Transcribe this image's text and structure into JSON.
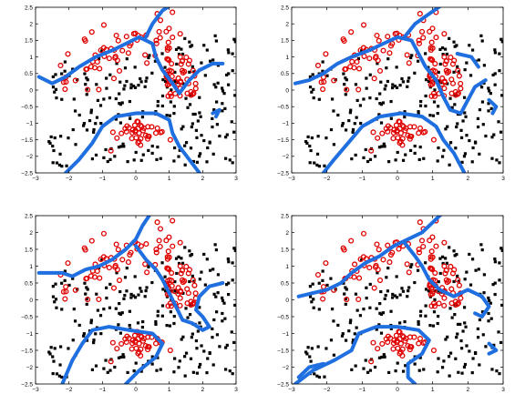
{
  "chart_data": [
    {
      "type": "scatter",
      "panel": "top-left",
      "xlim": [
        -3,
        3
      ],
      "ylim": [
        -2.5,
        2.5
      ],
      "xticks": [
        "−3",
        "−2",
        "−1",
        "0",
        "1",
        "2",
        "3"
      ],
      "yticks": [
        "2.5",
        "2",
        "1.5",
        "1",
        "0.5",
        "0",
        "−0.5",
        "−1",
        "−1.5",
        "−2",
        "−2.5"
      ],
      "grid": false,
      "classes": [
        {
          "marker": "dot",
          "color": "#000000",
          "seed": 11,
          "count": 230
        },
        {
          "marker": "circle",
          "color": "#e00000",
          "seed": 23,
          "count": 150
        }
      ],
      "boundaries": [
        [
          [
            -2.9,
            0.4
          ],
          [
            -2.5,
            0.2
          ],
          [
            -2.1,
            0.4
          ],
          [
            -1.7,
            0.7
          ],
          [
            -1.2,
            1.0
          ],
          [
            -0.7,
            1.2
          ],
          [
            -0.3,
            1.4
          ],
          [
            0.1,
            1.6
          ],
          [
            0.5,
            1.4
          ],
          [
            0.6,
            1.0
          ],
          [
            0.8,
            0.6
          ],
          [
            1.1,
            0.2
          ],
          [
            1.3,
            -0.1
          ],
          [
            1.6,
            0.3
          ],
          [
            1.9,
            0.6
          ],
          [
            2.3,
            0.8
          ],
          [
            2.6,
            0.8
          ]
        ],
        [
          [
            0.3,
            1.6
          ],
          [
            0.5,
            2.0
          ],
          [
            0.8,
            2.4
          ],
          [
            1.1,
            2.6
          ]
        ],
        [
          [
            -2.1,
            -2.5
          ],
          [
            -1.7,
            -2.1
          ],
          [
            -1.3,
            -1.6
          ],
          [
            -1.0,
            -1.1
          ],
          [
            -0.6,
            -0.8
          ],
          [
            0.0,
            -0.7
          ],
          [
            0.6,
            -0.7
          ],
          [
            1.0,
            -0.9
          ],
          [
            1.1,
            -1.3
          ],
          [
            1.3,
            -1.7
          ],
          [
            1.6,
            -2.1
          ],
          [
            1.9,
            -2.5
          ]
        ],
        [
          [
            2.3,
            -0.7
          ],
          [
            2.5,
            -0.6
          ],
          [
            2.4,
            -0.8
          ]
        ]
      ]
    },
    {
      "type": "scatter",
      "panel": "top-right",
      "xlim": [
        -3,
        3
      ],
      "ylim": [
        -2.5,
        2.5
      ],
      "xticks": [
        "−3",
        "−2",
        "−1",
        "0",
        "1",
        "2",
        "3"
      ],
      "yticks": [
        "2.5",
        "2",
        "1.5",
        "1",
        "0.5",
        "0",
        "−0.5",
        "−1",
        "−1.5",
        "−2",
        "−2.5"
      ],
      "grid": false,
      "classes": [
        {
          "marker": "dot",
          "color": "#000000",
          "seed": 11,
          "count": 230
        },
        {
          "marker": "circle",
          "color": "#e00000",
          "seed": 23,
          "count": 150
        }
      ],
      "boundaries": [
        [
          [
            -2.9,
            0.2
          ],
          [
            -2.5,
            0.3
          ],
          [
            -2.1,
            0.5
          ],
          [
            -1.7,
            0.8
          ],
          [
            -1.3,
            1.0
          ],
          [
            -0.8,
            1.2
          ],
          [
            -0.4,
            1.4
          ],
          [
            0.0,
            1.6
          ],
          [
            0.4,
            1.5
          ],
          [
            0.6,
            1.1
          ],
          [
            0.8,
            0.7
          ],
          [
            1.1,
            0.3
          ],
          [
            1.3,
            -0.2
          ],
          [
            1.5,
            -0.6
          ],
          [
            1.8,
            -0.7
          ],
          [
            2.0,
            -0.3
          ],
          [
            2.2,
            0.1
          ],
          [
            2.5,
            0.3
          ]
        ],
        [
          [
            0.2,
            1.6
          ],
          [
            0.5,
            2.0
          ],
          [
            0.9,
            2.3
          ],
          [
            1.3,
            2.6
          ]
        ],
        [
          [
            1.7,
            1.1
          ],
          [
            2.1,
            1.0
          ],
          [
            2.3,
            0.7
          ]
        ],
        [
          [
            -2.1,
            -2.5
          ],
          [
            -1.8,
            -2.1
          ],
          [
            -1.4,
            -1.6
          ],
          [
            -1.0,
            -1.1
          ],
          [
            -0.5,
            -0.8
          ],
          [
            0.1,
            -0.7
          ],
          [
            0.7,
            -0.8
          ],
          [
            1.1,
            -1.1
          ],
          [
            1.3,
            -1.5
          ],
          [
            1.6,
            -1.9
          ],
          [
            1.9,
            -2.5
          ]
        ],
        [
          [
            2.6,
            -0.3
          ],
          [
            2.8,
            -0.5
          ],
          [
            2.7,
            -0.7
          ]
        ]
      ]
    },
    {
      "type": "scatter",
      "panel": "bottom-left",
      "xlim": [
        -3,
        3
      ],
      "ylim": [
        -2.5,
        2.5
      ],
      "xticks": [
        "−3",
        "−2",
        "−1",
        "0",
        "1",
        "2",
        "3"
      ],
      "yticks": [
        "2.5",
        "2",
        "1.5",
        "1",
        "0.5",
        "0",
        "−0.5",
        "−1",
        "−1.5",
        "−2",
        "−2.5"
      ],
      "grid": false,
      "classes": [
        {
          "marker": "dot",
          "color": "#000000",
          "seed": 11,
          "count": 230
        },
        {
          "marker": "circle",
          "color": "#e00000",
          "seed": 23,
          "count": 150
        }
      ],
      "boundaries": [
        [
          [
            -2.9,
            0.8
          ],
          [
            -2.5,
            0.8
          ],
          [
            -2.2,
            0.8
          ],
          [
            -1.9,
            0.7
          ],
          [
            -1.5,
            0.9
          ],
          [
            -1.1,
            1.0
          ],
          [
            -0.7,
            1.2
          ],
          [
            -0.3,
            1.5
          ],
          [
            0.0,
            1.8
          ],
          [
            0.2,
            2.2
          ],
          [
            0.4,
            2.5
          ]
        ],
        [
          [
            0.0,
            1.6
          ],
          [
            0.3,
            1.2
          ],
          [
            0.6,
            0.9
          ],
          [
            0.8,
            0.6
          ],
          [
            1.0,
            0.2
          ],
          [
            1.2,
            -0.2
          ],
          [
            1.4,
            -0.6
          ],
          [
            1.7,
            -0.7
          ],
          [
            2.0,
            -0.9
          ],
          [
            2.2,
            -0.8
          ],
          [
            2.0,
            -0.5
          ],
          [
            1.8,
            -0.3
          ],
          [
            1.9,
            0.1
          ],
          [
            2.2,
            0.4
          ],
          [
            2.6,
            0.5
          ]
        ],
        [
          [
            -2.2,
            -2.5
          ],
          [
            -1.9,
            -1.8
          ],
          [
            -1.6,
            -1.3
          ],
          [
            -1.3,
            -0.9
          ],
          [
            -0.8,
            -0.8
          ],
          [
            -0.2,
            -0.9
          ],
          [
            0.5,
            -1.0
          ],
          [
            0.8,
            -1.3
          ],
          [
            0.6,
            -1.7
          ],
          [
            0.1,
            -2.1
          ],
          [
            -0.3,
            -2.5
          ]
        ]
      ]
    },
    {
      "type": "scatter",
      "panel": "bottom-right",
      "xlim": [
        -3,
        3
      ],
      "ylim": [
        -2.5,
        2.5
      ],
      "xticks": [
        "−3",
        "−2",
        "−1",
        "0",
        "1",
        "2",
        "3"
      ],
      "yticks": [
        "2.5",
        "2",
        "1.5",
        "1",
        "0.5",
        "0",
        "−0.5",
        "−1",
        "−1.5",
        "−2",
        "−2.5"
      ],
      "grid": false,
      "classes": [
        {
          "marker": "dot",
          "color": "#000000",
          "seed": 11,
          "count": 230
        },
        {
          "marker": "circle",
          "color": "#e00000",
          "seed": 23,
          "count": 150
        }
      ],
      "boundaries": [
        [
          [
            -2.8,
            0.1
          ],
          [
            -2.4,
            0.2
          ],
          [
            -2.0,
            0.3
          ],
          [
            -1.6,
            0.5
          ],
          [
            -1.3,
            0.8
          ],
          [
            -0.9,
            1.1
          ],
          [
            -0.5,
            1.3
          ],
          [
            -0.1,
            1.6
          ],
          [
            0.3,
            1.8
          ],
          [
            0.7,
            2.0
          ],
          [
            1.0,
            2.3
          ],
          [
            1.3,
            2.6
          ]
        ],
        [
          [
            0.2,
            1.7
          ],
          [
            0.5,
            1.3
          ],
          [
            0.7,
            1.0
          ],
          [
            0.9,
            0.6
          ],
          [
            1.2,
            0.3
          ],
          [
            1.6,
            0.1
          ],
          [
            2.0,
            0.3
          ],
          [
            2.4,
            0.1
          ],
          [
            2.6,
            -0.2
          ],
          [
            2.4,
            -0.5
          ],
          [
            2.2,
            -0.4
          ]
        ],
        [
          [
            -2.9,
            -2.5
          ],
          [
            -2.4,
            -2.1
          ],
          [
            -1.8,
            -1.8
          ],
          [
            -1.3,
            -1.5
          ],
          [
            -1.1,
            -1.0
          ],
          [
            -0.6,
            -0.8
          ],
          [
            0.0,
            -0.8
          ],
          [
            0.6,
            -0.9
          ],
          [
            0.9,
            -1.2
          ],
          [
            0.7,
            -1.6
          ],
          [
            0.3,
            -1.9
          ],
          [
            0.3,
            -2.3
          ],
          [
            0.5,
            -2.5
          ]
        ],
        [
          [
            -2.8,
            -2.3
          ],
          [
            -2.5,
            -2.0
          ],
          [
            -2.1,
            -1.9
          ]
        ],
        [
          [
            2.6,
            -1.3
          ],
          [
            2.8,
            -1.5
          ],
          [
            2.6,
            -1.6
          ]
        ]
      ]
    }
  ]
}
